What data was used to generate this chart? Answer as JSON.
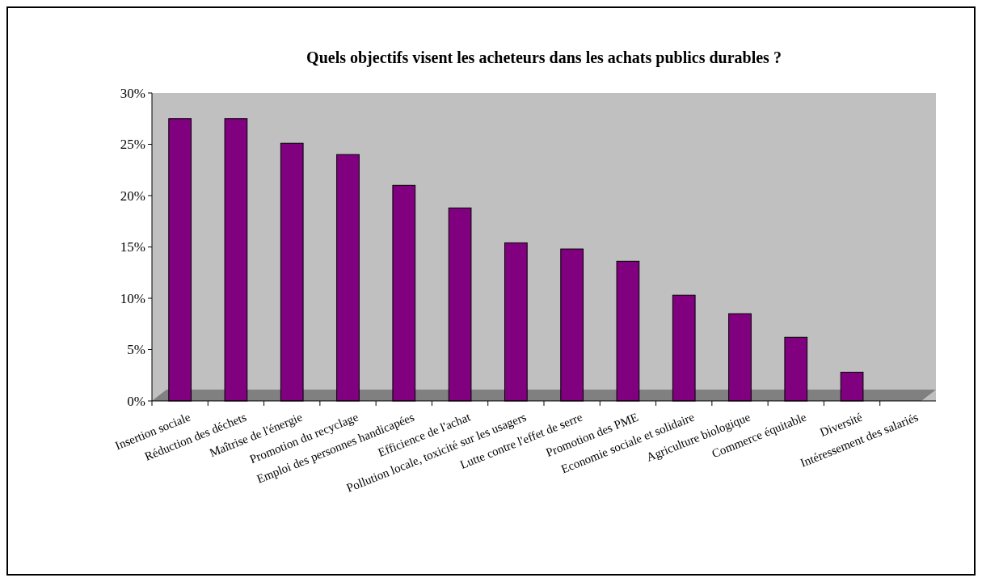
{
  "chart_data": {
    "type": "bar",
    "title": "Quels objectifs visent les acheteurs dans les achats publics durables ?",
    "categories": [
      "Insertion sociale",
      "Réduction des déchets",
      "Maîtrise de l'énergie",
      "Promotion du recyclage",
      "Emploi des personnes handicapées",
      "Efficience de l'achat",
      "Pollution locale, toxicité sur les usagers",
      "Lutte contre l'effet de serre",
      "Promotion des PME",
      "Economie sociale et solidaire",
      "Agriculture biologique",
      "Commerce équitable",
      "Diversité",
      "Intéressement des salariés"
    ],
    "values": [
      27.5,
      27.5,
      25.1,
      24.0,
      21.0,
      18.8,
      15.4,
      14.8,
      13.6,
      10.3,
      8.5,
      6.2,
      2.8,
      0
    ],
    "color": "#800080",
    "ylim": [
      0,
      30
    ],
    "yticks": [
      {
        "value": 0,
        "label": "0%"
      },
      {
        "value": 5,
        "label": "5%"
      },
      {
        "value": 10,
        "label": "10%"
      },
      {
        "value": 15,
        "label": "15%"
      },
      {
        "value": 20,
        "label": "20%"
      },
      {
        "value": 25,
        "label": "25%"
      },
      {
        "value": 30,
        "label": "30%"
      }
    ],
    "grid": false
  }
}
